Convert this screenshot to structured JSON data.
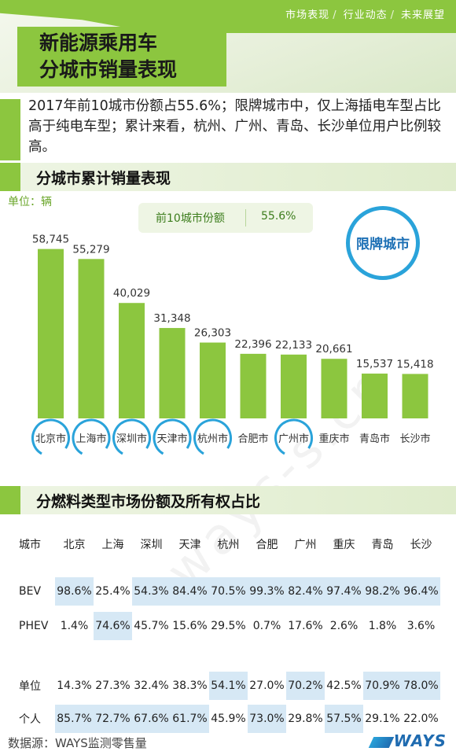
{
  "header": {
    "nav": [
      "市场表现",
      "行业动态",
      "未来展望"
    ],
    "title_line1": "新能源乘用车",
    "title_line2": "分城市销量表现"
  },
  "intro": "2017年前10城市份额占55.6%；限牌城市中，仅上海插电车型占比高于纯电车型；累计来看，杭州、广州、青岛、长沙单位用户比例较高。",
  "section1": {
    "title": "分城市累计销量表现"
  },
  "unit_label": "单位：辆",
  "share": {
    "label": "前10城市份额",
    "value": "55.6%"
  },
  "restricted_legend": "限牌城市",
  "chart_data": {
    "type": "bar",
    "categories": [
      "北京市",
      "上海市",
      "深圳市",
      "天津市",
      "杭州市",
      "合肥市",
      "广州市",
      "重庆市",
      "青岛市",
      "长沙市"
    ],
    "values": [
      58745,
      55279,
      40029,
      31348,
      26303,
      22396,
      22133,
      20661,
      15537,
      15418
    ],
    "value_labels": [
      "58,745",
      "55,279",
      "40,029",
      "31,348",
      "26,303",
      "22,396",
      "22,133",
      "20,661",
      "15,537",
      "15,418"
    ],
    "restricted": [
      true,
      true,
      true,
      true,
      true,
      false,
      true,
      false,
      false,
      false
    ],
    "bar_color": "#8cc63f",
    "ring_color": "#2aa3da",
    "ylim": [
      0,
      60000
    ],
    "grid": false
  },
  "section2": {
    "title": "分燃料类型市场份额及所有权占比"
  },
  "table": {
    "header_label": "城市",
    "cities": [
      "北京",
      "上海",
      "深圳",
      "天津",
      "杭州",
      "合肥",
      "广州",
      "重庆",
      "青岛",
      "长沙"
    ],
    "rows": [
      {
        "label": "BEV",
        "values": [
          "98.6%",
          "25.4%",
          "54.3%",
          "84.4%",
          "70.5%",
          "99.3%",
          "82.4%",
          "97.4%",
          "98.2%",
          "96.4%"
        ],
        "highlight": [
          true,
          false,
          true,
          true,
          true,
          true,
          true,
          true,
          true,
          true
        ]
      },
      {
        "label": "PHEV",
        "values": [
          "1.4%",
          "74.6%",
          "45.7%",
          "15.6%",
          "29.5%",
          "0.7%",
          "17.6%",
          "2.6%",
          "1.8%",
          "3.6%"
        ],
        "highlight": [
          false,
          true,
          false,
          false,
          false,
          false,
          false,
          false,
          false,
          false
        ]
      },
      {
        "label": "单位",
        "values": [
          "14.3%",
          "27.3%",
          "32.4%",
          "38.3%",
          "54.1%",
          "27.0%",
          "70.2%",
          "42.5%",
          "70.9%",
          "78.0%"
        ],
        "highlight": [
          false,
          false,
          false,
          false,
          true,
          false,
          true,
          false,
          true,
          true
        ]
      },
      {
        "label": "个人",
        "values": [
          "85.7%",
          "72.7%",
          "67.6%",
          "61.7%",
          "45.9%",
          "73.0%",
          "29.8%",
          "57.5%",
          "29.1%",
          "22.0%"
        ],
        "highlight": [
          true,
          true,
          true,
          true,
          false,
          true,
          false,
          true,
          false,
          false
        ]
      }
    ]
  },
  "footer": {
    "source": "数据源：WAYS监测零售量",
    "logo": "WAYS"
  },
  "colors": {
    "accent": "#8cc63f",
    "highlight_cell": "#d6e8f5",
    "ring": "#2aa3da"
  }
}
